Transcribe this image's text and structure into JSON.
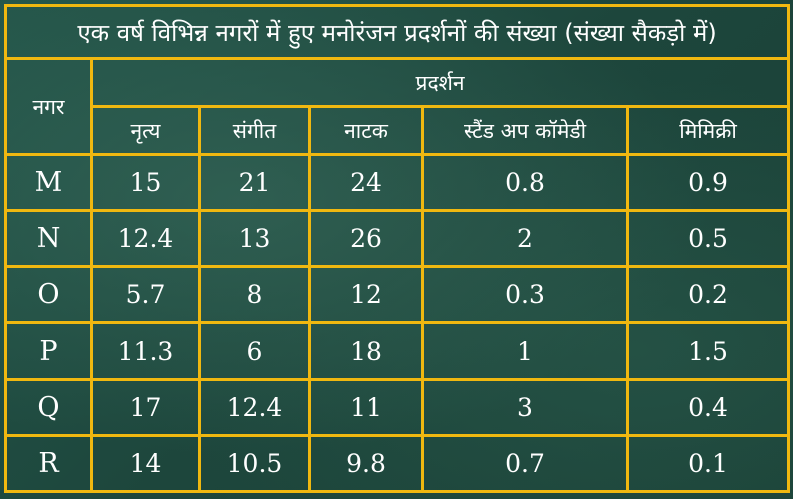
{
  "chart_data": {
    "type": "table",
    "title": "एक वर्ष विभिन्न नगरों में हुए मनोरंजन प्रदर्शनों की संख्या (संख्या सैकड़ो में)",
    "row_header": "नगर",
    "group_header": "प्रदर्शन",
    "columns": [
      "नृत्य",
      "संगीत",
      "नाटक",
      "स्टैंड अप कॉमेडी",
      "मिमिक्री"
    ],
    "rows": [
      {
        "city": "M",
        "values": [
          "15",
          "21",
          "24",
          "0.8",
          "0.9"
        ]
      },
      {
        "city": "N",
        "values": [
          "12.4",
          "13",
          "26",
          "2",
          "0.5"
        ]
      },
      {
        "city": "O",
        "values": [
          "5.7",
          "8",
          "12",
          "0.3",
          "0.2"
        ]
      },
      {
        "city": "P",
        "values": [
          "11.3",
          "6",
          "18",
          "1",
          "1.5"
        ]
      },
      {
        "city": "Q",
        "values": [
          "17",
          "12.4",
          "11",
          "3",
          "0.4"
        ]
      },
      {
        "city": "R",
        "values": [
          "14",
          "10.5",
          "9.8",
          "0.7",
          "0.1"
        ]
      }
    ]
  },
  "colors": {
    "background": "#1f4a3f",
    "grid": "#f0b810",
    "text": "#ffffff"
  }
}
